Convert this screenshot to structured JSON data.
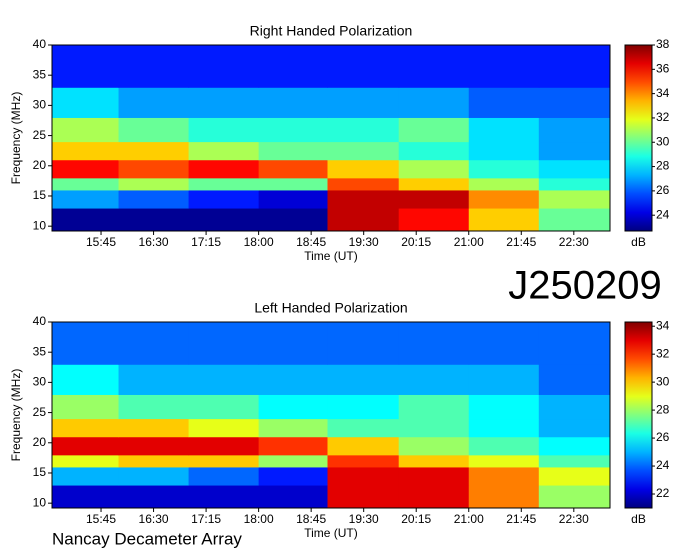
{
  "chart_data": [
    {
      "type": "heatmap",
      "title": "Right Handed Polarization",
      "xlabel": "Time (UT)",
      "ylabel": "Frequency (MHz)",
      "colormap": "jet",
      "xbins": [
        903,
        960,
        1020,
        1080,
        1139,
        1200,
        1260,
        1320,
        1381
      ],
      "ybins": [
        9.2,
        13,
        16,
        18,
        21,
        24,
        28,
        33,
        40
      ],
      "values": [
        [
          23,
          23,
          23,
          23,
          37,
          36,
          33,
          30
        ],
        [
          27,
          26,
          25,
          24,
          37,
          37,
          34,
          31
        ],
        [
          30,
          31,
          30,
          30,
          35,
          33,
          31,
          29
        ],
        [
          36,
          35,
          36,
          35,
          33,
          31,
          29,
          28
        ],
        [
          33,
          33,
          31,
          30,
          30,
          29,
          28,
          27
        ],
        [
          31,
          30,
          29,
          29,
          29,
          30,
          28,
          27
        ],
        [
          28,
          27,
          27,
          27,
          27,
          27,
          26,
          26
        ],
        [
          25,
          25,
          25,
          25,
          25,
          25,
          25,
          25
        ]
      ],
      "xlim": [
        903,
        1381
      ],
      "ylim": [
        9.2,
        40
      ],
      "xticks": [
        {
          "value": 945,
          "label": "15:45"
        },
        {
          "value": 990,
          "label": "16:30"
        },
        {
          "value": 1035,
          "label": "17:15"
        },
        {
          "value": 1080,
          "label": "18:00"
        },
        {
          "value": 1125,
          "label": "18:45"
        },
        {
          "value": 1170,
          "label": "19:30"
        },
        {
          "value": 1215,
          "label": "20:15"
        },
        {
          "value": 1260,
          "label": "21:00"
        },
        {
          "value": 1305,
          "label": "21:45"
        },
        {
          "value": 1350,
          "label": "22:30"
        }
      ],
      "yticks": [
        10,
        15,
        20,
        25,
        30,
        35,
        40
      ],
      "colorbar": {
        "label": "dB",
        "lim": [
          22.7,
          38
        ],
        "ticks": [
          24,
          26,
          28,
          30,
          32,
          34,
          36,
          38
        ]
      }
    },
    {
      "type": "heatmap",
      "title": "Left Handed Polarization",
      "xlabel": "Time (UT)",
      "ylabel": "Frequency (MHz)",
      "colormap": "jet",
      "xbins": [
        903,
        960,
        1020,
        1080,
        1139,
        1200,
        1260,
        1320,
        1381
      ],
      "ybins": [
        9.2,
        13,
        16,
        18,
        21,
        24,
        28,
        33,
        40
      ],
      "values": [
        [
          22,
          22,
          22,
          22,
          33,
          33,
          31,
          28
        ],
        [
          25,
          25,
          24,
          23,
          33,
          33,
          31,
          29
        ],
        [
          29,
          30,
          30,
          28,
          32,
          30,
          29,
          27
        ],
        [
          33,
          33,
          33,
          32,
          30,
          28,
          27,
          26
        ],
        [
          30,
          30,
          29,
          28,
          27,
          27,
          26,
          25
        ],
        [
          28,
          27,
          27,
          26,
          26,
          27,
          26,
          25
        ],
        [
          26,
          25,
          25,
          25,
          25,
          25,
          25,
          24
        ],
        [
          24,
          24,
          24,
          24,
          24,
          24,
          24,
          24
        ]
      ],
      "xlim": [
        903,
        1381
      ],
      "ylim": [
        9.2,
        40
      ],
      "xticks": [
        {
          "value": 945,
          "label": "15:45"
        },
        {
          "value": 990,
          "label": "16:30"
        },
        {
          "value": 1035,
          "label": "17:15"
        },
        {
          "value": 1080,
          "label": "18:00"
        },
        {
          "value": 1125,
          "label": "18:45"
        },
        {
          "value": 1170,
          "label": "19:30"
        },
        {
          "value": 1215,
          "label": "20:15"
        },
        {
          "value": 1260,
          "label": "21:00"
        },
        {
          "value": 1305,
          "label": "21:45"
        },
        {
          "value": 1350,
          "label": "22:30"
        }
      ],
      "yticks": [
        10,
        15,
        20,
        25,
        30,
        35,
        40
      ],
      "colorbar": {
        "label": "dB",
        "lim": [
          21,
          34.3
        ],
        "ticks": [
          22,
          24,
          26,
          28,
          30,
          32,
          34
        ]
      }
    }
  ],
  "annotations": [
    "J250209",
    "Nancay Decameter Array"
  ]
}
